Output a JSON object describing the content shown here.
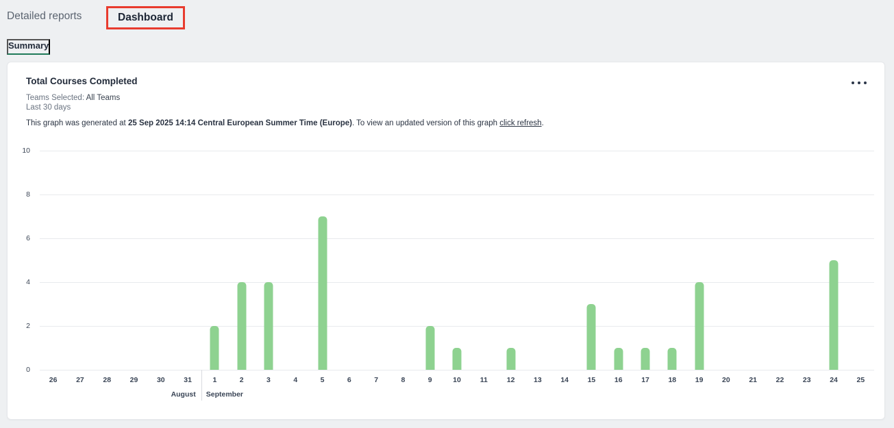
{
  "header": {
    "tabs": [
      {
        "label": "Detailed reports",
        "active": false
      },
      {
        "label": "Dashboard",
        "active": true
      }
    ],
    "subtab": {
      "label": "Summary"
    },
    "highlight_box_color": "#e83b2e"
  },
  "card": {
    "title": "Total Courses Completed",
    "teams_selected_label": "Teams Selected: ",
    "teams_selected_value": "All Teams",
    "period": "Last 30 days",
    "generated_prefix": "This graph was generated at ",
    "generated_timestamp": "25 Sep 2025 14:14 Central European Summer Time (Europe)",
    "generated_middle": ". To view an updated version of this graph ",
    "refresh_link_label": "click refresh",
    "generated_suffix": ".",
    "menu_icon": "ellipsis-icon"
  },
  "chart_data": {
    "type": "bar",
    "title": "Total Courses Completed",
    "categories": [
      "26",
      "27",
      "28",
      "29",
      "30",
      "31",
      "1",
      "2",
      "3",
      "4",
      "5",
      "6",
      "7",
      "8",
      "9",
      "10",
      "11",
      "12",
      "13",
      "14",
      "15",
      "16",
      "17",
      "18",
      "19",
      "20",
      "21",
      "22",
      "23",
      "24",
      "25"
    ],
    "values": [
      0,
      0,
      0,
      0,
      0,
      0,
      2,
      4,
      4,
      0,
      7,
      0,
      0,
      0,
      2,
      1,
      0,
      1,
      0,
      0,
      3,
      1,
      1,
      1,
      4,
      0,
      0,
      0,
      0,
      5,
      0
    ],
    "month_groups": [
      {
        "label": "August",
        "start": 0,
        "end": 5
      },
      {
        "label": "September",
        "start": 6,
        "end": 30
      }
    ],
    "ylim": [
      0,
      10
    ],
    "yticks": [
      0,
      2,
      4,
      6,
      8,
      10
    ],
    "grid": true,
    "legend": null,
    "bar_color": "#8ed290",
    "gridline_color": "#e8eaed"
  },
  "colors": {
    "page_background": "#eef0f2",
    "card_background": "#ffffff",
    "summary_underline": "#1f7a58",
    "text_dark": "#212b3b",
    "text_gray": "#6a7380"
  }
}
